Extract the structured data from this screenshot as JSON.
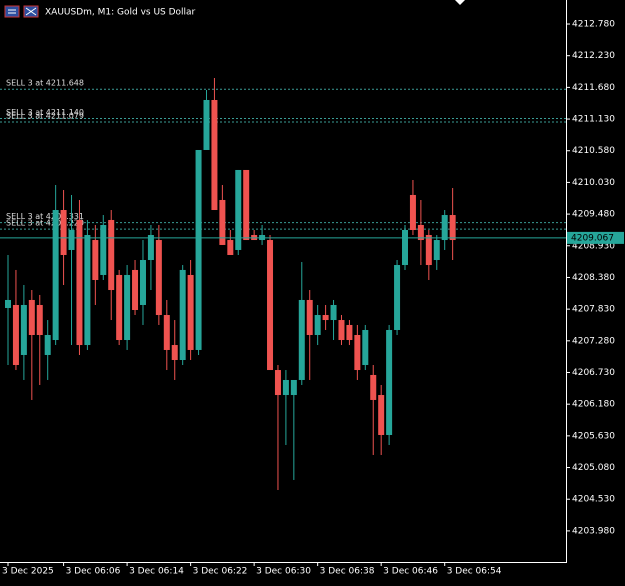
{
  "chart_data": {
    "type": "candlestick",
    "title": "XAUUSDm, M1:  Gold vs US Dollar",
    "categories": [
      "3 Dec 2025",
      null,
      null,
      null,
      null,
      null,
      null,
      "3 Dec 06:06",
      null,
      null,
      null,
      null,
      null,
      null,
      null,
      "3 Dec 06:14",
      null,
      null,
      null,
      null,
      null,
      null,
      null,
      "3 Dec 06:22",
      null,
      null,
      null,
      null,
      null,
      null,
      null,
      "3 Dec 06:30",
      null,
      null,
      null,
      null,
      null,
      null,
      null,
      "3 Dec 06:38",
      null,
      null,
      null,
      null,
      null,
      null,
      null,
      "3 Dec 06:46",
      null,
      null,
      null,
      null,
      null,
      null,
      null,
      "3 Dec 06:54",
      null
    ],
    "series": [
      {
        "up_color": "#26a69a",
        "down_color": "#ef5350",
        "open": [
          4207.85,
          4207.902,
          4207.034,
          4207.989,
          4207.902,
          4207.034,
          4207.294,
          4209.551,
          4208.857,
          4209.378,
          4207.207,
          4209.03,
          4208.423,
          4209.378,
          4208.423,
          4207.294,
          4208.51,
          4207.902,
          4208.683,
          4209.03,
          4207.728,
          4207.207,
          4206.947,
          4208.423,
          4207.121,
          4210.593,
          4211.461,
          4209.725,
          4209.03,
          4208.857,
          4210.246,
          4209.117,
          4209.03,
          4209.03,
          4206.773,
          4206.339,
          4206.339,
          4206.6,
          4207.989,
          4207.381,
          4207.728,
          4207.641,
          4207.641,
          4207.555,
          4207.381,
          4206.86,
          4206.687,
          4206.339,
          4205.645,
          4207.468,
          4208.596,
          4209.812,
          4209.291,
          4209.117,
          4208.683,
          4209.03,
          4209.464
        ],
        "high": [
          4208.77,
          4208.51,
          4208.249,
          4208.162,
          4208.076,
          4207.641,
          4209.985,
          4209.898,
          4209.812,
          4209.725,
          4209.378,
          4209.291,
          4209.464,
          4209.551,
          4208.51,
          4208.596,
          4208.683,
          4209.03,
          4209.291,
          4209.291,
          4207.989,
          4207.641,
          4208.596,
          4208.683,
          4210.593,
          4211.635,
          4211.843,
          4209.985,
          4209.204,
          4210.246,
          4210.246,
          4209.204,
          4209.291,
          4209.117,
          4206.86,
          4206.773,
          4206.513,
          4208.648,
          4208.162,
          4207.902,
          4207.902,
          4207.989,
          4207.728,
          4207.641,
          4207.555,
          4207.555,
          4206.86,
          4206.513,
          4207.555,
          4208.683,
          4209.291,
          4210.072,
          4209.725,
          4209.204,
          4209.117,
          4209.551,
          4209.933
        ],
        "low": [
          4206.86,
          4206.773,
          4206.6,
          4206.253,
          4206.513,
          4206.6,
          4207.207,
          4208.249,
          4207.207,
          4207.034,
          4207.121,
          4207.902,
          4208.336,
          4207.641,
          4207.207,
          4207.121,
          4207.728,
          4207.555,
          4208.162,
          4207.555,
          4206.773,
          4206.6,
          4206.86,
          4206.947,
          4207.034,
          4210.593,
          4209.551,
          4208.944,
          4208.77,
          4208.77,
          4209.03,
          4209.03,
          4208.944,
          4206.773,
          4204.69,
          4205.471,
          4204.864,
          4206.513,
          4206.6,
          4207.207,
          4207.468,
          4207.294,
          4207.207,
          4207.207,
          4206.6,
          4206.773,
          4205.298,
          4205.298,
          4205.471,
          4207.381,
          4208.51,
          4209.117,
          4208.596,
          4208.336,
          4208.51,
          4208.857,
          4208.683
        ],
        "close": [
          4207.989,
          4206.86,
          4207.902,
          4207.381,
          4207.381,
          4207.381,
          4209.551,
          4208.77,
          4209.204,
          4207.207,
          4209.117,
          4208.336,
          4209.291,
          4208.162,
          4207.294,
          4208.423,
          4207.815,
          4208.683,
          4209.117,
          4207.728,
          4207.121,
          4206.947,
          4208.51,
          4207.121,
          4210.593,
          4211.461,
          4209.551,
          4208.944,
          4208.77,
          4210.246,
          4209.03,
          4209.03,
          4209.117,
          4206.773,
          4206.339,
          4206.6,
          4206.6,
          4207.989,
          4207.381,
          4207.728,
          4207.641,
          4207.902,
          4207.294,
          4207.294,
          4206.773,
          4207.468,
          4206.253,
          4205.645,
          4207.468,
          4208.596,
          4209.204,
          4209.204,
          4209.03,
          4208.596,
          4209.03,
          4209.464,
          4209.03
        ]
      }
    ],
    "ylim": [
      4203.44,
      4213.197
    ],
    "yticks": [
      {
        "value": 4212.78,
        "label": "4212.780"
      },
      {
        "value": 4212.23,
        "label": "4212.230"
      },
      {
        "value": 4211.68,
        "label": "4211.680"
      },
      {
        "value": 4211.13,
        "label": "4211.130"
      },
      {
        "value": 4210.58,
        "label": "4210.580"
      },
      {
        "value": 4210.03,
        "label": "4210.030"
      },
      {
        "value": 4209.48,
        "label": "4209.480"
      },
      {
        "value": 4208.93,
        "label": "4208.930"
      },
      {
        "value": 4208.38,
        "label": "4208.380"
      },
      {
        "value": 4207.83,
        "label": "4207.830"
      },
      {
        "value": 4207.28,
        "label": "4207.280"
      },
      {
        "value": 4206.73,
        "label": "4206.730"
      },
      {
        "value": 4206.18,
        "label": "4206.180"
      },
      {
        "value": 4205.63,
        "label": "4205.630"
      },
      {
        "value": 4205.08,
        "label": "4205.080"
      },
      {
        "value": 4204.53,
        "label": "4204.530"
      },
      {
        "value": 4203.98,
        "label": "4203.980"
      }
    ],
    "grid": false,
    "levels": [
      {
        "value": 4211.648,
        "label": "SELL 3 at 4211.648"
      },
      {
        "value": 4211.14,
        "label": "SELL 3 at 4211.140"
      },
      {
        "value": 4211.079,
        "label": "SELL 3 at 4211.079"
      },
      {
        "value": 4209.331,
        "label": "SELL 3 at 4209.331"
      },
      {
        "value": 4209.22,
        "label": "SELL 3 at 4209.220"
      }
    ],
    "level_color": "#3a9c95",
    "bid": 4209.067,
    "bid_color": "#26a69a"
  }
}
